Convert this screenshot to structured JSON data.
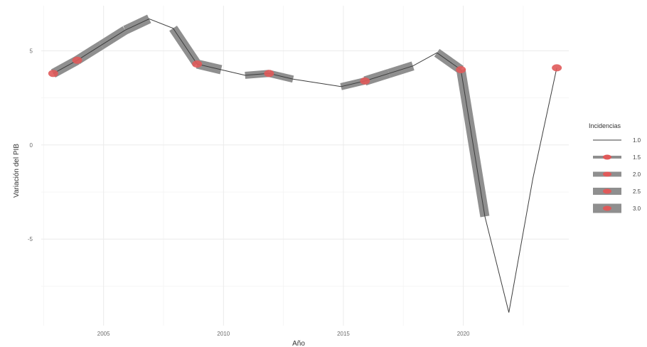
{
  "chart_data": {
    "type": "line",
    "xlabel": "Año",
    "ylabel": "Variación del PIB",
    "x_ticks": [
      2005,
      2010,
      2015,
      2020
    ],
    "y_ticks": [
      5,
      0,
      -5
    ],
    "xlim": [
      2002.4,
      2024.4
    ],
    "ylim": [
      -9.6,
      7.4
    ],
    "grid": true,
    "legend": {
      "title": "Incidencias",
      "position": "right",
      "items": [
        {
          "label": "1.0",
          "value": 1.0
        },
        {
          "label": "1.5",
          "value": 1.5
        },
        {
          "label": "2.0",
          "value": 2.0
        },
        {
          "label": "2.5",
          "value": 2.5
        },
        {
          "label": "3.0",
          "value": 3.0
        }
      ]
    },
    "series": [
      {
        "x": [
          2002.9,
          2003.9,
          2004.9,
          2005.9,
          2006.9,
          2007.9,
          2008.9,
          2009.9,
          2010.9,
          2011.9,
          2012.9,
          2013.9,
          2014.9,
          2015.9,
          2016.9,
          2017.9,
          2018.9,
          2019.9,
          2020.9,
          2021.9,
          2022.9,
          2023.9
        ],
        "y": [
          3.8,
          4.5,
          5.3,
          6.1,
          6.7,
          6.2,
          4.3,
          4.0,
          3.7,
          3.8,
          3.5,
          3.3,
          3.1,
          3.4,
          3.8,
          4.2,
          4.9,
          4.0,
          -3.8,
          -8.9,
          -1.8,
          4.1
        ],
        "incidence": [
          3,
          3,
          3,
          3,
          1,
          3,
          3,
          1,
          2.5,
          2.5,
          1,
          1,
          2.5,
          3,
          3,
          1,
          3,
          3,
          1,
          1,
          1,
          2
        ]
      }
    ],
    "colors": {
      "line": "#3d3d3d",
      "band": "#8f8f8f",
      "point": "#e05a5a",
      "grid": "#ebebeb"
    }
  }
}
